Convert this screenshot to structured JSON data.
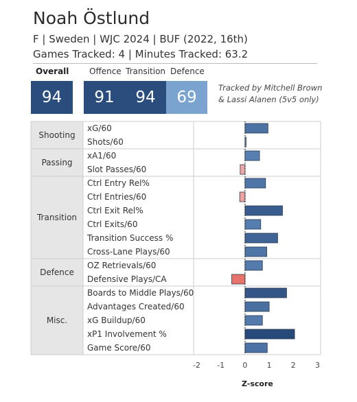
{
  "header": {
    "name": "Noah Östlund",
    "info": "F | Sweden | WJC 2024 | BUF (2022, 16th)",
    "tracked": "Games Tracked: 4 | Minutes Tracked: 63.2"
  },
  "scores": {
    "overall": {
      "label": "Overall",
      "value": "94",
      "color": "#2b4d7e"
    },
    "offence": {
      "label": "Offence",
      "value": "91",
      "color": "#2b4d7e"
    },
    "transition": {
      "label": "Transition",
      "value": "94",
      "color": "#2b4d7e"
    },
    "defence": {
      "label": "Defence",
      "value": "69",
      "color": "#7aa3cf"
    }
  },
  "tracker_note": [
    "Tracked by Mitchell Brown",
    "& Lassi Alanen (5v5 only)"
  ],
  "chart_data": {
    "type": "bar",
    "orientation": "horizontal",
    "xlabel": "Z-score",
    "xlim": [
      -2,
      3
    ],
    "xticks": [
      -2,
      -1,
      0,
      1,
      2,
      3
    ],
    "groups": [
      {
        "name": "Shooting",
        "metrics": [
          {
            "label": "xG/60",
            "value": 0.95
          },
          {
            "label": "Shots/60",
            "value": 0.02
          }
        ]
      },
      {
        "name": "Passing",
        "metrics": [
          {
            "label": "xA1/60",
            "value": 0.6
          },
          {
            "label": "Slot Passes/60",
            "value": -0.2
          }
        ]
      },
      {
        "name": "Transition",
        "metrics": [
          {
            "label": "Ctrl Entry Rel%",
            "value": 0.85
          },
          {
            "label": "Ctrl Entries/60",
            "value": -0.22
          },
          {
            "label": "Ctrl Exit Rel%",
            "value": 1.55
          },
          {
            "label": "Ctrl Exits/60",
            "value": 0.65
          },
          {
            "label": "Transition Success %",
            "value": 1.35
          },
          {
            "label": "Cross-Lane Plays/60",
            "value": 0.9
          }
        ]
      },
      {
        "name": "Defence",
        "metrics": [
          {
            "label": "OZ Retrievals/60",
            "value": 0.72
          },
          {
            "label": "Defensive Plays/CA",
            "value": -0.55
          }
        ]
      },
      {
        "name": "Misc.",
        "metrics": [
          {
            "label": "Boards to Middle Plays/60",
            "value": 1.72
          },
          {
            "label": "Advantages Created/60",
            "value": 1.0
          },
          {
            "label": "xG Buildup/60",
            "value": 0.72
          },
          {
            "label": "xP1 Involvement %",
            "value": 2.05
          },
          {
            "label": "Game Score/60",
            "value": 0.92
          }
        ]
      }
    ],
    "colors": {
      "positive_light": "#6b95c7",
      "positive_dark": "#284a7b",
      "negative_light": "#f0c4c4",
      "negative_dark": "#e8736b",
      "group_bg": "#e6e6e6",
      "grid": "#cccccc"
    }
  }
}
